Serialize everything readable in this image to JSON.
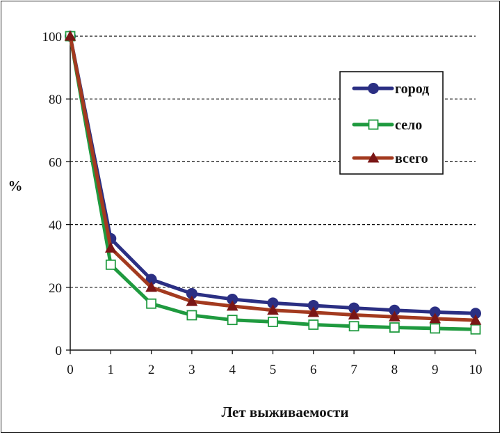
{
  "chart_data": {
    "type": "line",
    "title": "",
    "xlabel": "Лет выживаемости",
    "ylabel": "%",
    "x": [
      0,
      1,
      2,
      3,
      4,
      5,
      6,
      7,
      8,
      9,
      10
    ],
    "x_tick_labels": [
      "0",
      "1",
      "2",
      "3",
      "4",
      "5",
      "6",
      "7",
      "8",
      "9",
      "10"
    ],
    "y_tick_labels": [
      "0",
      "20",
      "40",
      "60",
      "80",
      "100"
    ],
    "xlim": [
      0,
      10
    ],
    "ylim": [
      0,
      100
    ],
    "grid": "horizontal-dashed",
    "legend_position": "top-right",
    "series": [
      {
        "name": "город",
        "color": "#2b2f83",
        "marker": "circle",
        "values": [
          100,
          35.5,
          22.5,
          18,
          16.2,
          15,
          14.2,
          13.4,
          12.7,
          12.1,
          11.7
        ]
      },
      {
        "name": "село",
        "color": "#1f9a3f",
        "marker": "square-open",
        "values": [
          100,
          27.2,
          14.8,
          11.1,
          9.6,
          9.0,
          8.1,
          7.6,
          7.2,
          6.9,
          6.6
        ]
      },
      {
        "name": "всего",
        "color": "#a33a1f",
        "marker": "triangle",
        "marker_color": "#7a1616",
        "values": [
          100,
          32.5,
          20,
          15.5,
          14,
          12.7,
          12,
          11.2,
          10.6,
          10,
          9.5
        ]
      }
    ]
  }
}
